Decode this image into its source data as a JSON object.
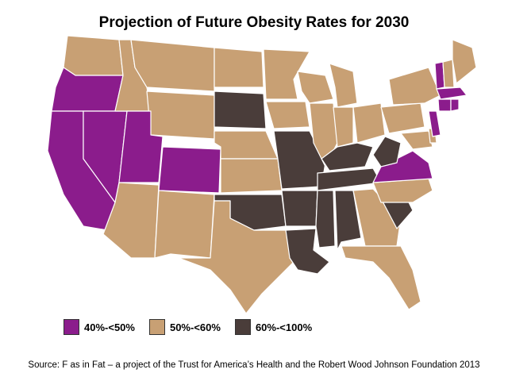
{
  "title": "Projection of Future Obesity Rates for 2030",
  "colors": {
    "high": "#8B1C8C",
    "mid": "#C8A074",
    "top": "#4A3D3A",
    "border": "#ffffff"
  },
  "legend": [
    {
      "label": "40%-<50%",
      "color_key": "high"
    },
    {
      "label": "50%-<60%",
      "color_key": "mid"
    },
    {
      "label": "60%-<100%",
      "color_key": "top"
    }
  ],
  "states": {
    "40-50": [
      "OR",
      "CA",
      "NV",
      "UT",
      "CO",
      "VA",
      "NJ",
      "VT",
      "MA",
      "CT",
      "RI"
    ],
    "50-60": [
      "WA",
      "ID",
      "MT",
      "WY",
      "ND",
      "NE",
      "MN",
      "IA",
      "WI",
      "MI",
      "IL",
      "IN",
      "OH",
      "PA",
      "NY",
      "ME",
      "NH",
      "MD",
      "DE",
      "NC",
      "GA",
      "FL",
      "TX",
      "NM",
      "AZ",
      "KS"
    ],
    "60-100": [
      "SD",
      "OK",
      "MO",
      "AR",
      "LA",
      "MS",
      "AL",
      "TN",
      "KY",
      "WV",
      "SC"
    ]
  },
  "source": "Source: F as in Fat – a project of the Trust for America’s Health and the Robert Wood Johnson Foundation 2013"
}
